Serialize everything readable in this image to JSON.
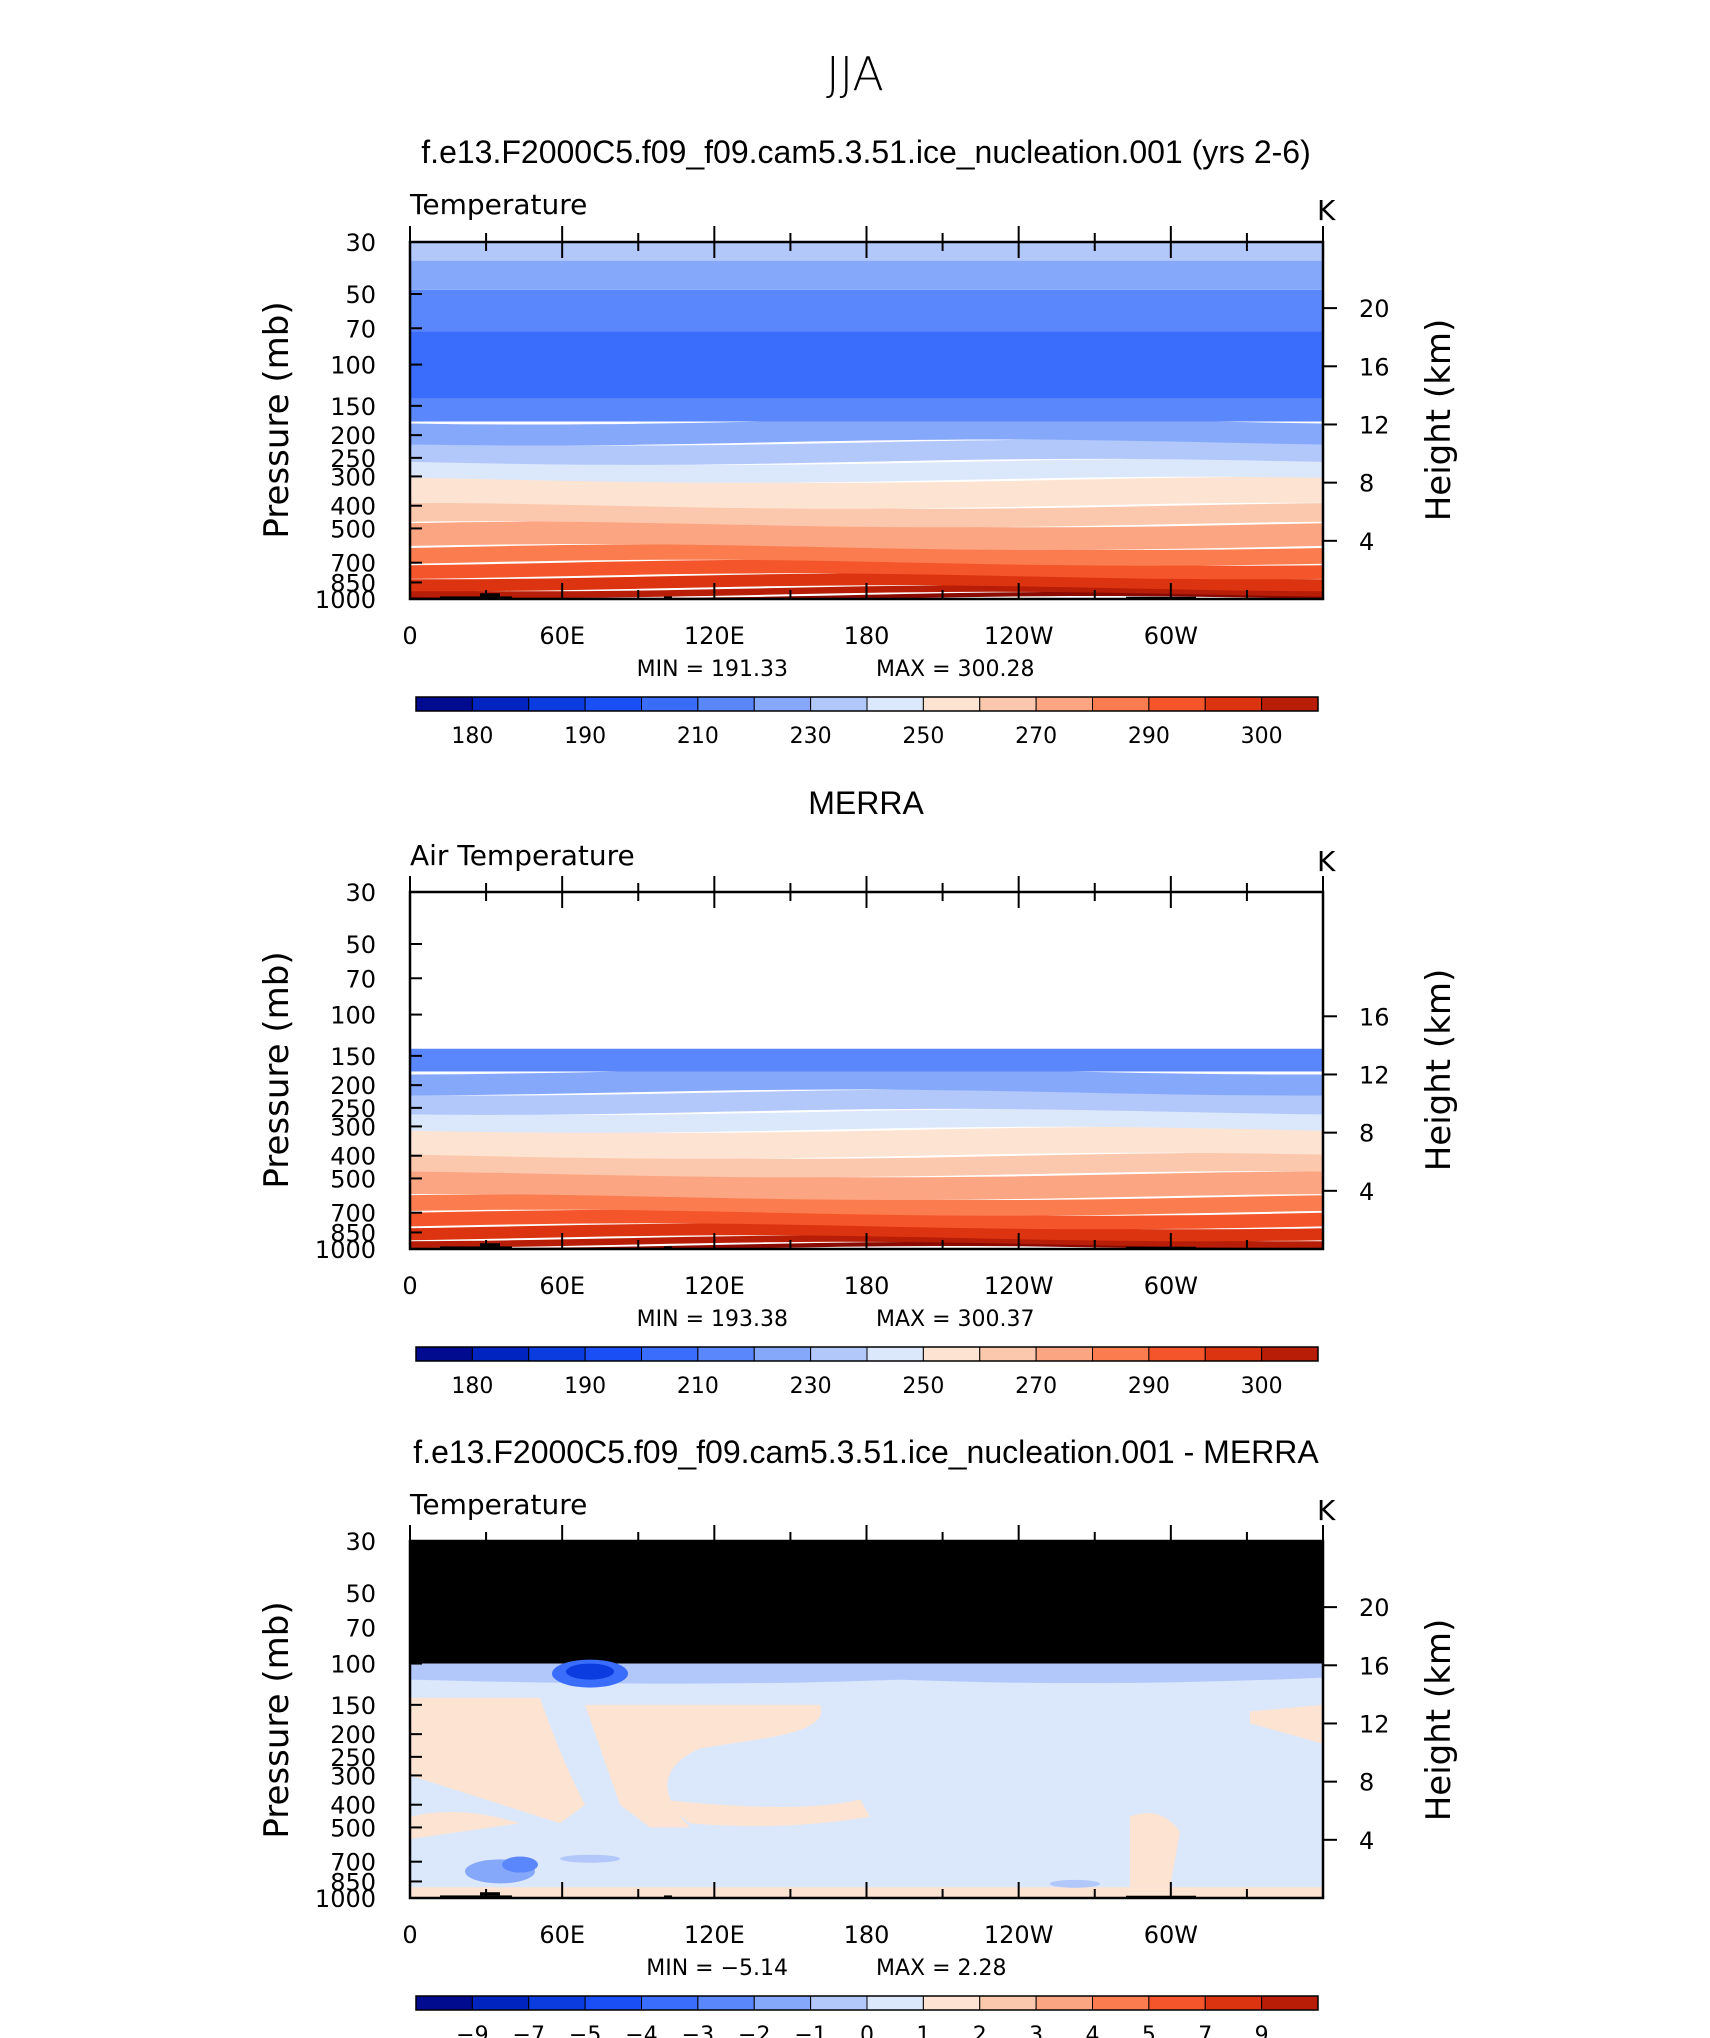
{
  "figure": {
    "title": "JJA"
  },
  "chart_data": [
    {
      "type": "contour",
      "title": "f.e13.F2000C5.f09_f09.cam5.3.51.ice_nucleation.001 (yrs 2-6)",
      "variable": "Temperature",
      "units": "K",
      "ylabel": "Pressure (mb)",
      "ylabel_right": "Height (km)",
      "y_scale": "log",
      "y_reversed": true,
      "ylim": [
        1000,
        30
      ],
      "y_ticks": [
        "30",
        "50",
        "70",
        "100",
        "150",
        "200",
        "250",
        "300",
        "400",
        "500",
        "700",
        "850",
        "1000"
      ],
      "y_right_ticks": [
        "20",
        "16",
        "12",
        "8",
        "4"
      ],
      "x_ticks": [
        "0",
        "60E",
        "120E",
        "180",
        "120W",
        "60W"
      ],
      "min_label": "MIN = 191.33",
      "max_label": "MAX = 300.28",
      "min": 191.33,
      "max": 300.28,
      "colorbar_labels": [
        "180",
        "190",
        "210",
        "230",
        "250",
        "270",
        "290",
        "300"
      ],
      "data_top_pressure": 30
    },
    {
      "type": "contour",
      "title": "MERRA",
      "variable": "Air Temperature",
      "units": "K",
      "ylabel": "Pressure (mb)",
      "ylabel_right": "Height (km)",
      "y_scale": "log",
      "y_reversed": true,
      "ylim": [
        1000,
        30
      ],
      "y_ticks": [
        "30",
        "50",
        "70",
        "100",
        "150",
        "200",
        "250",
        "300",
        "400",
        "500",
        "700",
        "850",
        "1000"
      ],
      "y_right_ticks": [
        "16",
        "12",
        "8",
        "4"
      ],
      "x_ticks": [
        "0",
        "60E",
        "120E",
        "180",
        "120W",
        "60W"
      ],
      "min_label": "MIN = 193.38",
      "max_label": "MAX = 300.37",
      "min": 193.38,
      "max": 300.37,
      "colorbar_labels": [
        "180",
        "190",
        "210",
        "230",
        "250",
        "270",
        "290",
        "300"
      ],
      "data_top_pressure": 100
    },
    {
      "type": "contour",
      "title": "f.e13.F2000C5.f09_f09.cam5.3.51.ice_nucleation.001 - MERRA",
      "variable": "Temperature",
      "units": "K",
      "ylabel": "Pressure (mb)",
      "ylabel_right": "Height (km)",
      "y_scale": "log",
      "y_reversed": true,
      "ylim": [
        1000,
        30
      ],
      "y_ticks": [
        "30",
        "50",
        "70",
        "100",
        "150",
        "200",
        "250",
        "300",
        "400",
        "500",
        "700",
        "850",
        "1000"
      ],
      "y_right_ticks": [
        "20",
        "16",
        "12",
        "8",
        "4"
      ],
      "x_ticks": [
        "0",
        "60E",
        "120E",
        "180",
        "120W",
        "60W"
      ],
      "min_label": "MIN = −5.14",
      "max_label": "MAX = 2.28",
      "min": -5.14,
      "max": 2.28,
      "colorbar_labels": [
        "−9",
        "−7",
        "−5",
        "−4",
        "−3",
        "−2",
        "−1",
        "0",
        "1",
        "2",
        "3",
        "4",
        "5",
        "7",
        "9"
      ],
      "data_top_pressure": 100
    }
  ],
  "colors": {
    "palette": [
      "#000b8f",
      "#0024c0",
      "#0a3ce0",
      "#1a4ff5",
      "#3a6dfb",
      "#5a87fb",
      "#86a8fb",
      "#b2c8fb",
      "#dbe7fb",
      "#fde4d2",
      "#fcc8ad",
      "#fca582",
      "#fb7c4e",
      "#f4552a",
      "#dc3410",
      "#b81e07",
      "#8b0a00"
    ],
    "missing": "#000000"
  }
}
